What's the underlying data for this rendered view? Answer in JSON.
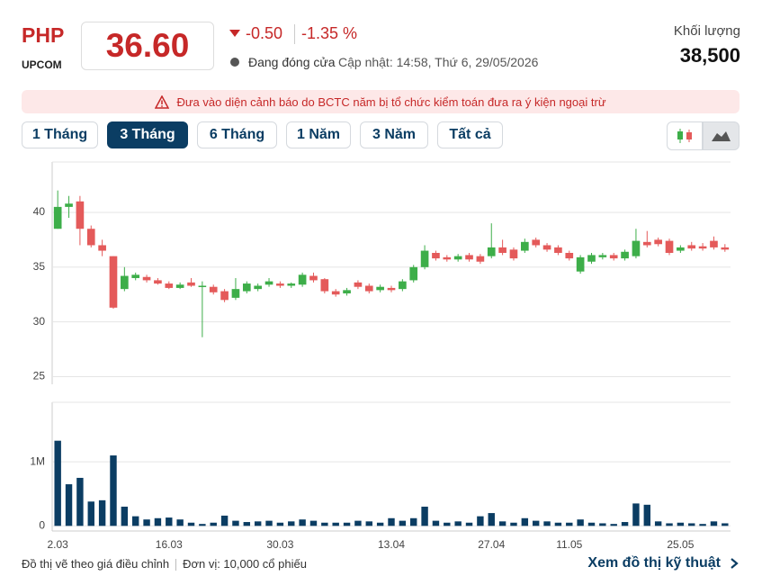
{
  "header": {
    "ticker": "PHP",
    "exchange": "UPCOM",
    "price": "36.60",
    "change": "-0.50",
    "change_pct": "-1.35 %",
    "status": "Đang đóng cửa",
    "updated": "Cập nhật: 14:58, Thứ 6, 29/05/2026",
    "volume_label": "Khối lượng",
    "volume": "38,500"
  },
  "warning": "Đưa vào diện cảnh báo do BCTC năm bị tổ chức kiểm toán đưa ra ý kiện ngoại trừ",
  "tabs": [
    "1 Tháng",
    "3 Tháng",
    "6 Tháng",
    "1 Năm",
    "3 Năm",
    "Tất cả"
  ],
  "footer": {
    "note": "Đồ thị vẽ theo giá điều chỉnh",
    "unit": "Đơn vị: 10,000 cổ phiếu",
    "link": "Xem đồ thị kỹ thuật"
  },
  "chart_data": {
    "type": "candlestick",
    "categories": [
      "2.03",
      null,
      null,
      null,
      null,
      null,
      null,
      null,
      null,
      null,
      "16.03",
      null,
      null,
      null,
      null,
      null,
      null,
      null,
      null,
      null,
      "30.03",
      null,
      null,
      null,
      null,
      null,
      null,
      null,
      null,
      null,
      "13.04",
      null,
      null,
      null,
      null,
      null,
      null,
      null,
      null,
      "27.04",
      null,
      null,
      null,
      null,
      null,
      null,
      "11.05",
      null,
      null,
      null,
      null,
      null,
      null,
      null,
      null,
      null,
      "25.05",
      null,
      null,
      null,
      null
    ],
    "open": [
      38.5,
      40.5,
      41,
      38.5,
      37,
      36,
      33,
      34,
      34.1,
      33.8,
      33.5,
      33.1,
      33.6,
      33.2,
      33.2,
      32.8,
      32.2,
      32.8,
      33,
      33.4,
      33.5,
      33.3,
      33.4,
      34.2,
      33.9,
      32.8,
      32.6,
      33.6,
      33.3,
      32.9,
      33.1,
      33,
      33.8,
      35,
      36.3,
      35.9,
      35.7,
      36.1,
      36,
      36,
      36.8,
      36.6,
      36.5,
      37.5,
      37,
      36.8,
      36.3,
      34.6,
      35.5,
      35.9,
      36.1,
      35.8,
      36,
      37.3,
      37.5,
      37.4,
      36.5,
      37,
      36.9,
      37.4,
      36.8
    ],
    "high": [
      42,
      41.5,
      41.5,
      38.8,
      37.5,
      36,
      35,
      34.5,
      34.3,
      34,
      33.7,
      33.6,
      34,
      33.7,
      33.4,
      33,
      34,
      33.7,
      33.5,
      34,
      33.7,
      33.6,
      34.5,
      34.5,
      34,
      33,
      33.1,
      33.8,
      33.5,
      33.4,
      33.3,
      33.9,
      35.2,
      37,
      36.5,
      36.1,
      36.2,
      36.3,
      36.2,
      39,
      37.5,
      36.8,
      37.6,
      37.7,
      37.2,
      37,
      36.5,
      36.1,
      36.3,
      36.3,
      36.3,
      36.6,
      38.5,
      38.3,
      37.7,
      37.6,
      37,
      37.3,
      37.2,
      37.8,
      37.1
    ],
    "low": [
      38.5,
      39.5,
      37,
      36.8,
      36,
      31.2,
      32.8,
      33.8,
      33.6,
      33.4,
      33,
      33,
      33.2,
      28.6,
      32.5,
      31.8,
      32,
      32.6,
      32.8,
      33.2,
      33.1,
      33.1,
      33.2,
      33.6,
      32.6,
      32.3,
      32.4,
      33,
      32.6,
      32.7,
      32.7,
      32.8,
      33.6,
      34.8,
      35.6,
      35.5,
      35.5,
      35.5,
      35.3,
      35.8,
      36.1,
      35.6,
      36.3,
      36.8,
      36.4,
      36.1,
      35.6,
      34.4,
      35.3,
      35.7,
      35.6,
      35.6,
      35.8,
      36.8,
      36.9,
      36.1,
      36.3,
      36.5,
      36.5,
      36.6,
      36.4
    ],
    "close": [
      40.5,
      40.8,
      38.5,
      37,
      36.5,
      31.3,
      34.2,
      34.3,
      33.8,
      33.5,
      33.1,
      33.4,
      33.3,
      33.3,
      32.7,
      32,
      33,
      33.5,
      33.3,
      33.7,
      33.3,
      33.5,
      34.3,
      33.8,
      32.8,
      32.5,
      32.9,
      33.2,
      32.8,
      33.2,
      32.9,
      33.7,
      35,
      36.5,
      35.8,
      35.7,
      36,
      35.7,
      35.5,
      36.8,
      36.3,
      35.8,
      37.3,
      37,
      36.6,
      36.3,
      35.8,
      35.9,
      36.1,
      36.1,
      35.8,
      36.4,
      37.4,
      37,
      37.1,
      36.3,
      36.8,
      36.7,
      36.7,
      36.8,
      36.6
    ],
    "volume": [
      1330000,
      650000,
      750000,
      380000,
      400000,
      1100000,
      300000,
      150000,
      100000,
      120000,
      130000,
      100000,
      50000,
      30000,
      50000,
      160000,
      80000,
      60000,
      70000,
      80000,
      50000,
      70000,
      100000,
      80000,
      50000,
      50000,
      50000,
      80000,
      70000,
      50000,
      120000,
      80000,
      120000,
      300000,
      80000,
      50000,
      70000,
      50000,
      150000,
      200000,
      70000,
      50000,
      120000,
      80000,
      70000,
      50000,
      50000,
      100000,
      50000,
      40000,
      30000,
      60000,
      350000,
      330000,
      70000,
      40000,
      50000,
      40000,
      30000,
      70000,
      40000
    ],
    "up_color": "#3dae49",
    "down_color": "#e45a5a",
    "volume_color": "#0b3d63",
    "ylim": [
      24.3,
      44.6
    ],
    "yticks": [
      25,
      30,
      35,
      40
    ],
    "y2lim": [
      -80000,
      1930000
    ],
    "y2ticks": [
      0,
      {
        "value": 1000000,
        "label": "1M"
      }
    ],
    "grid": true
  }
}
